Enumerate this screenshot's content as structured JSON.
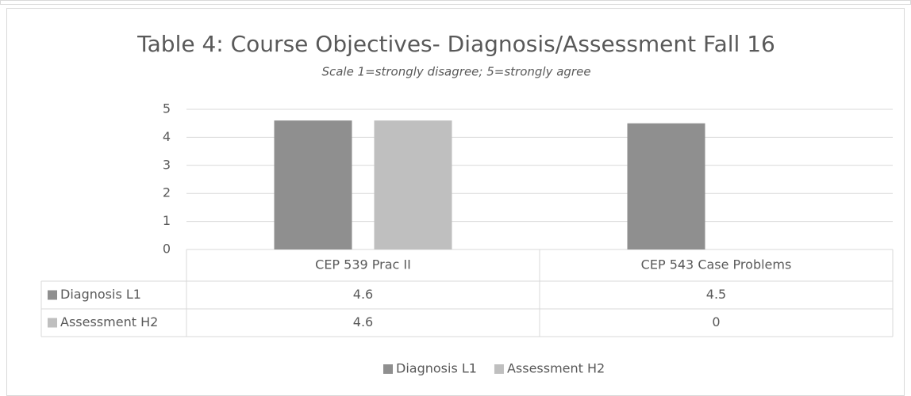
{
  "chart_data": {
    "type": "bar",
    "title": "Table 4: Course Objectives- Diagnosis/Assessment  Fall 16",
    "subtitle": "Scale 1=strongly disagree; 5=strongly agree",
    "categories": [
      "CEP 539 Prac II",
      "CEP 543 Case Problems"
    ],
    "series": [
      {
        "name": "Diagnosis L1",
        "color": "#8f8f8f",
        "values": [
          4.6,
          4.5
        ]
      },
      {
        "name": "Assessment H2",
        "color": "#bfbfbf",
        "values": [
          4.6,
          0
        ]
      }
    ],
    "ylim": [
      0,
      5
    ],
    "yticks": [
      0,
      1,
      2,
      3,
      4,
      5
    ],
    "grid": true,
    "legend": "bottom"
  }
}
